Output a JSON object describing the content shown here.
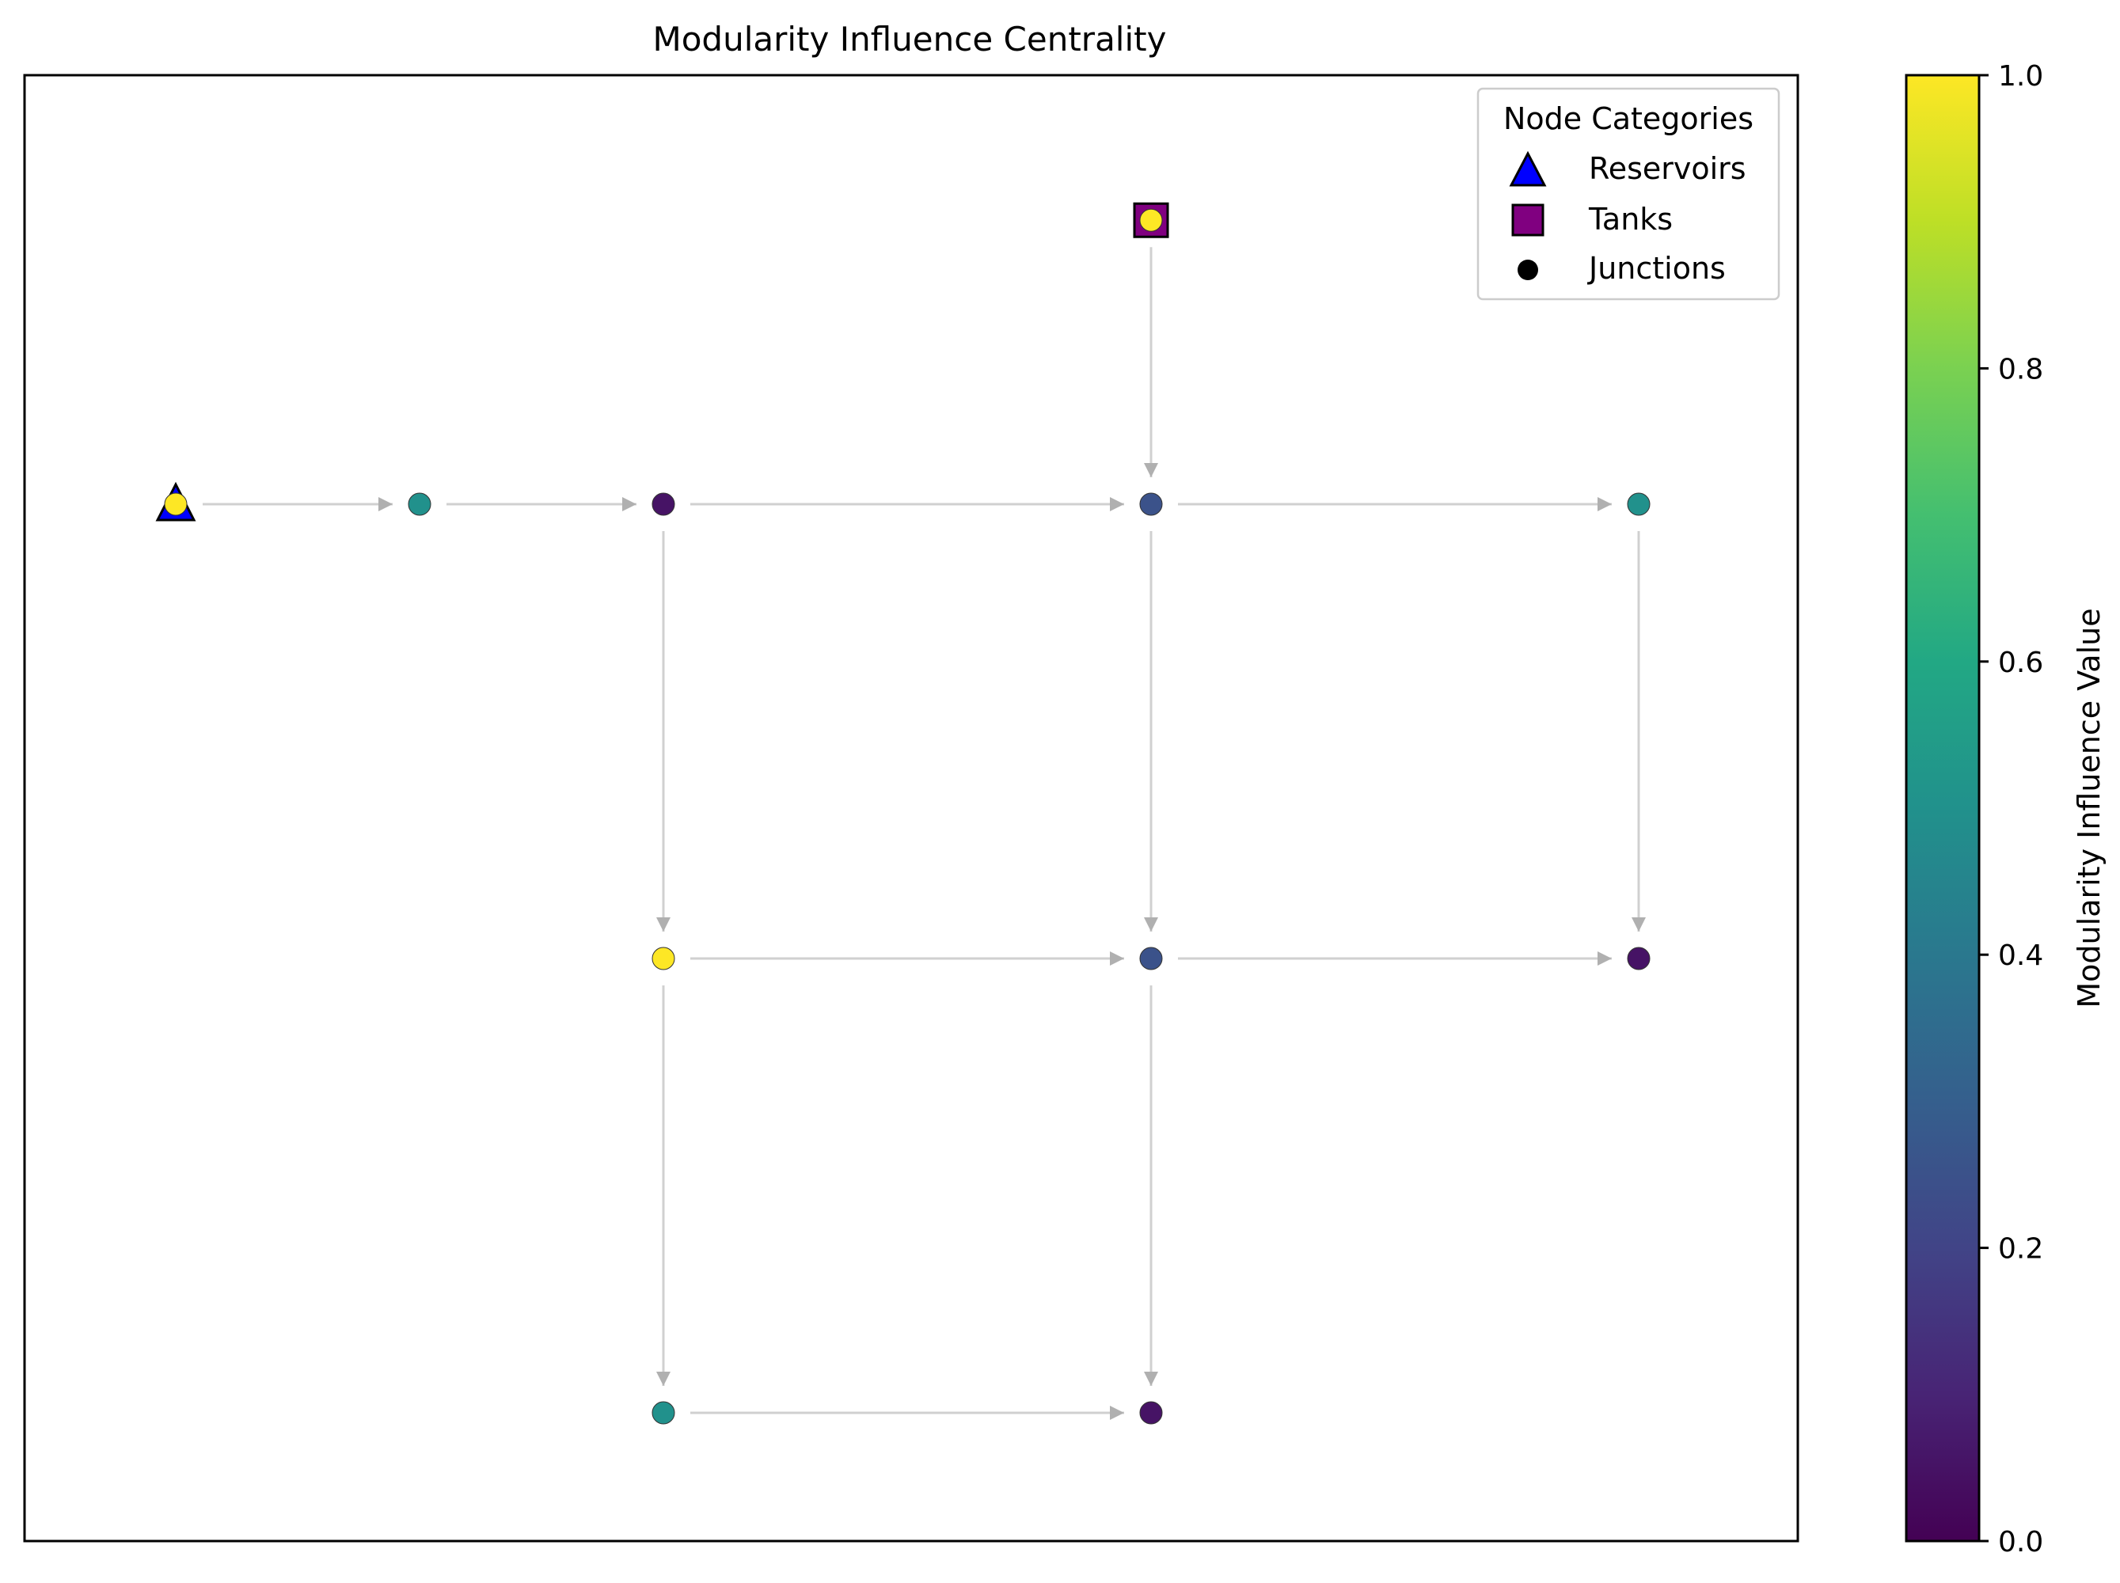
{
  "chart_data": {
    "type": "network",
    "title": "Modularity Influence Centrality",
    "colorbar": {
      "label": "Modularity Influence Value",
      "colormap": "viridis",
      "range": [
        0.0,
        1.0
      ],
      "ticks": [
        "0.0",
        "0.2",
        "0.4",
        "0.6",
        "0.8",
        "1.0"
      ]
    },
    "legend": {
      "title": "Node Categories",
      "placement": "top-right",
      "entries": [
        {
          "label": "Reservoirs",
          "marker": "triangle",
          "color": "#0000ff"
        },
        {
          "label": "Tanks",
          "marker": "square",
          "color": "#800080"
        },
        {
          "label": "Junctions",
          "marker": "circle",
          "color": "#000000"
        }
      ]
    },
    "nodes": [
      {
        "id": "R",
        "category": "Reservoirs",
        "x": 0,
        "y": 2,
        "value": 1.0
      },
      {
        "id": "T",
        "category": "Tanks",
        "x": 4,
        "y": 3.25,
        "value": 1.0
      },
      {
        "id": "J1",
        "category": "Junctions",
        "x": 1,
        "y": 2,
        "value": 0.5
      },
      {
        "id": "J2",
        "category": "Junctions",
        "x": 2,
        "y": 2,
        "value": 0.05
      },
      {
        "id": "J3",
        "category": "Junctions",
        "x": 4,
        "y": 2,
        "value": 0.25
      },
      {
        "id": "J4",
        "category": "Junctions",
        "x": 6,
        "y": 2,
        "value": 0.5
      },
      {
        "id": "J5",
        "category": "Junctions",
        "x": 2,
        "y": 0,
        "value": 1.0
      },
      {
        "id": "J6",
        "category": "Junctions",
        "x": 4,
        "y": 0,
        "value": 0.25
      },
      {
        "id": "J7",
        "category": "Junctions",
        "x": 6,
        "y": 0,
        "value": 0.05
      },
      {
        "id": "J8",
        "category": "Junctions",
        "x": 2,
        "y": -2,
        "value": 0.5
      },
      {
        "id": "J9",
        "category": "Junctions",
        "x": 4,
        "y": -2,
        "value": 0.05
      }
    ],
    "edges": [
      [
        "R",
        "J1"
      ],
      [
        "J1",
        "J2"
      ],
      [
        "J2",
        "J3"
      ],
      [
        "J3",
        "J4"
      ],
      [
        "T",
        "J3"
      ],
      [
        "J2",
        "J5"
      ],
      [
        "J3",
        "J6"
      ],
      [
        "J4",
        "J7"
      ],
      [
        "J5",
        "J6"
      ],
      [
        "J6",
        "J7"
      ],
      [
        "J5",
        "J8"
      ],
      [
        "J6",
        "J9"
      ],
      [
        "J8",
        "J9"
      ]
    ]
  }
}
